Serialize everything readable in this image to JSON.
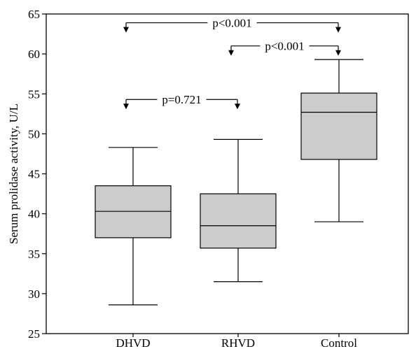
{
  "chart_data": {
    "type": "boxplot",
    "ylabel": "Serum prolidase activity, U/L",
    "ylim": [
      25,
      65
    ],
    "yticks": [
      25,
      30,
      35,
      40,
      45,
      50,
      55,
      60,
      65
    ],
    "grid": false,
    "colors": {
      "box_fill": "#cccccc",
      "stroke": "#000000"
    },
    "categories": [
      "DHVD",
      "RHVD",
      "Control"
    ],
    "boxes": [
      {
        "category": "DHVD",
        "min": 28.6,
        "q1": 37.0,
        "median": 40.3,
        "q3": 43.5,
        "max": 48.3
      },
      {
        "category": "RHVD",
        "min": 31.5,
        "q1": 35.7,
        "median": 38.5,
        "q3": 42.5,
        "max": 49.3
      },
      {
        "category": "Control",
        "min": 39.0,
        "q1": 46.8,
        "median": 52.7,
        "q3": 55.1,
        "max": 59.3
      }
    ],
    "annotations": [
      {
        "from": "DHVD",
        "to": "Control",
        "label": "p<0.001",
        "y": 63.9
      },
      {
        "from": "RHVD",
        "to": "Control",
        "label": "p<0.001",
        "y": 61.0
      },
      {
        "from": "DHVD",
        "to": "RHVD",
        "label": "p=0.721",
        "y": 54.3
      }
    ]
  }
}
